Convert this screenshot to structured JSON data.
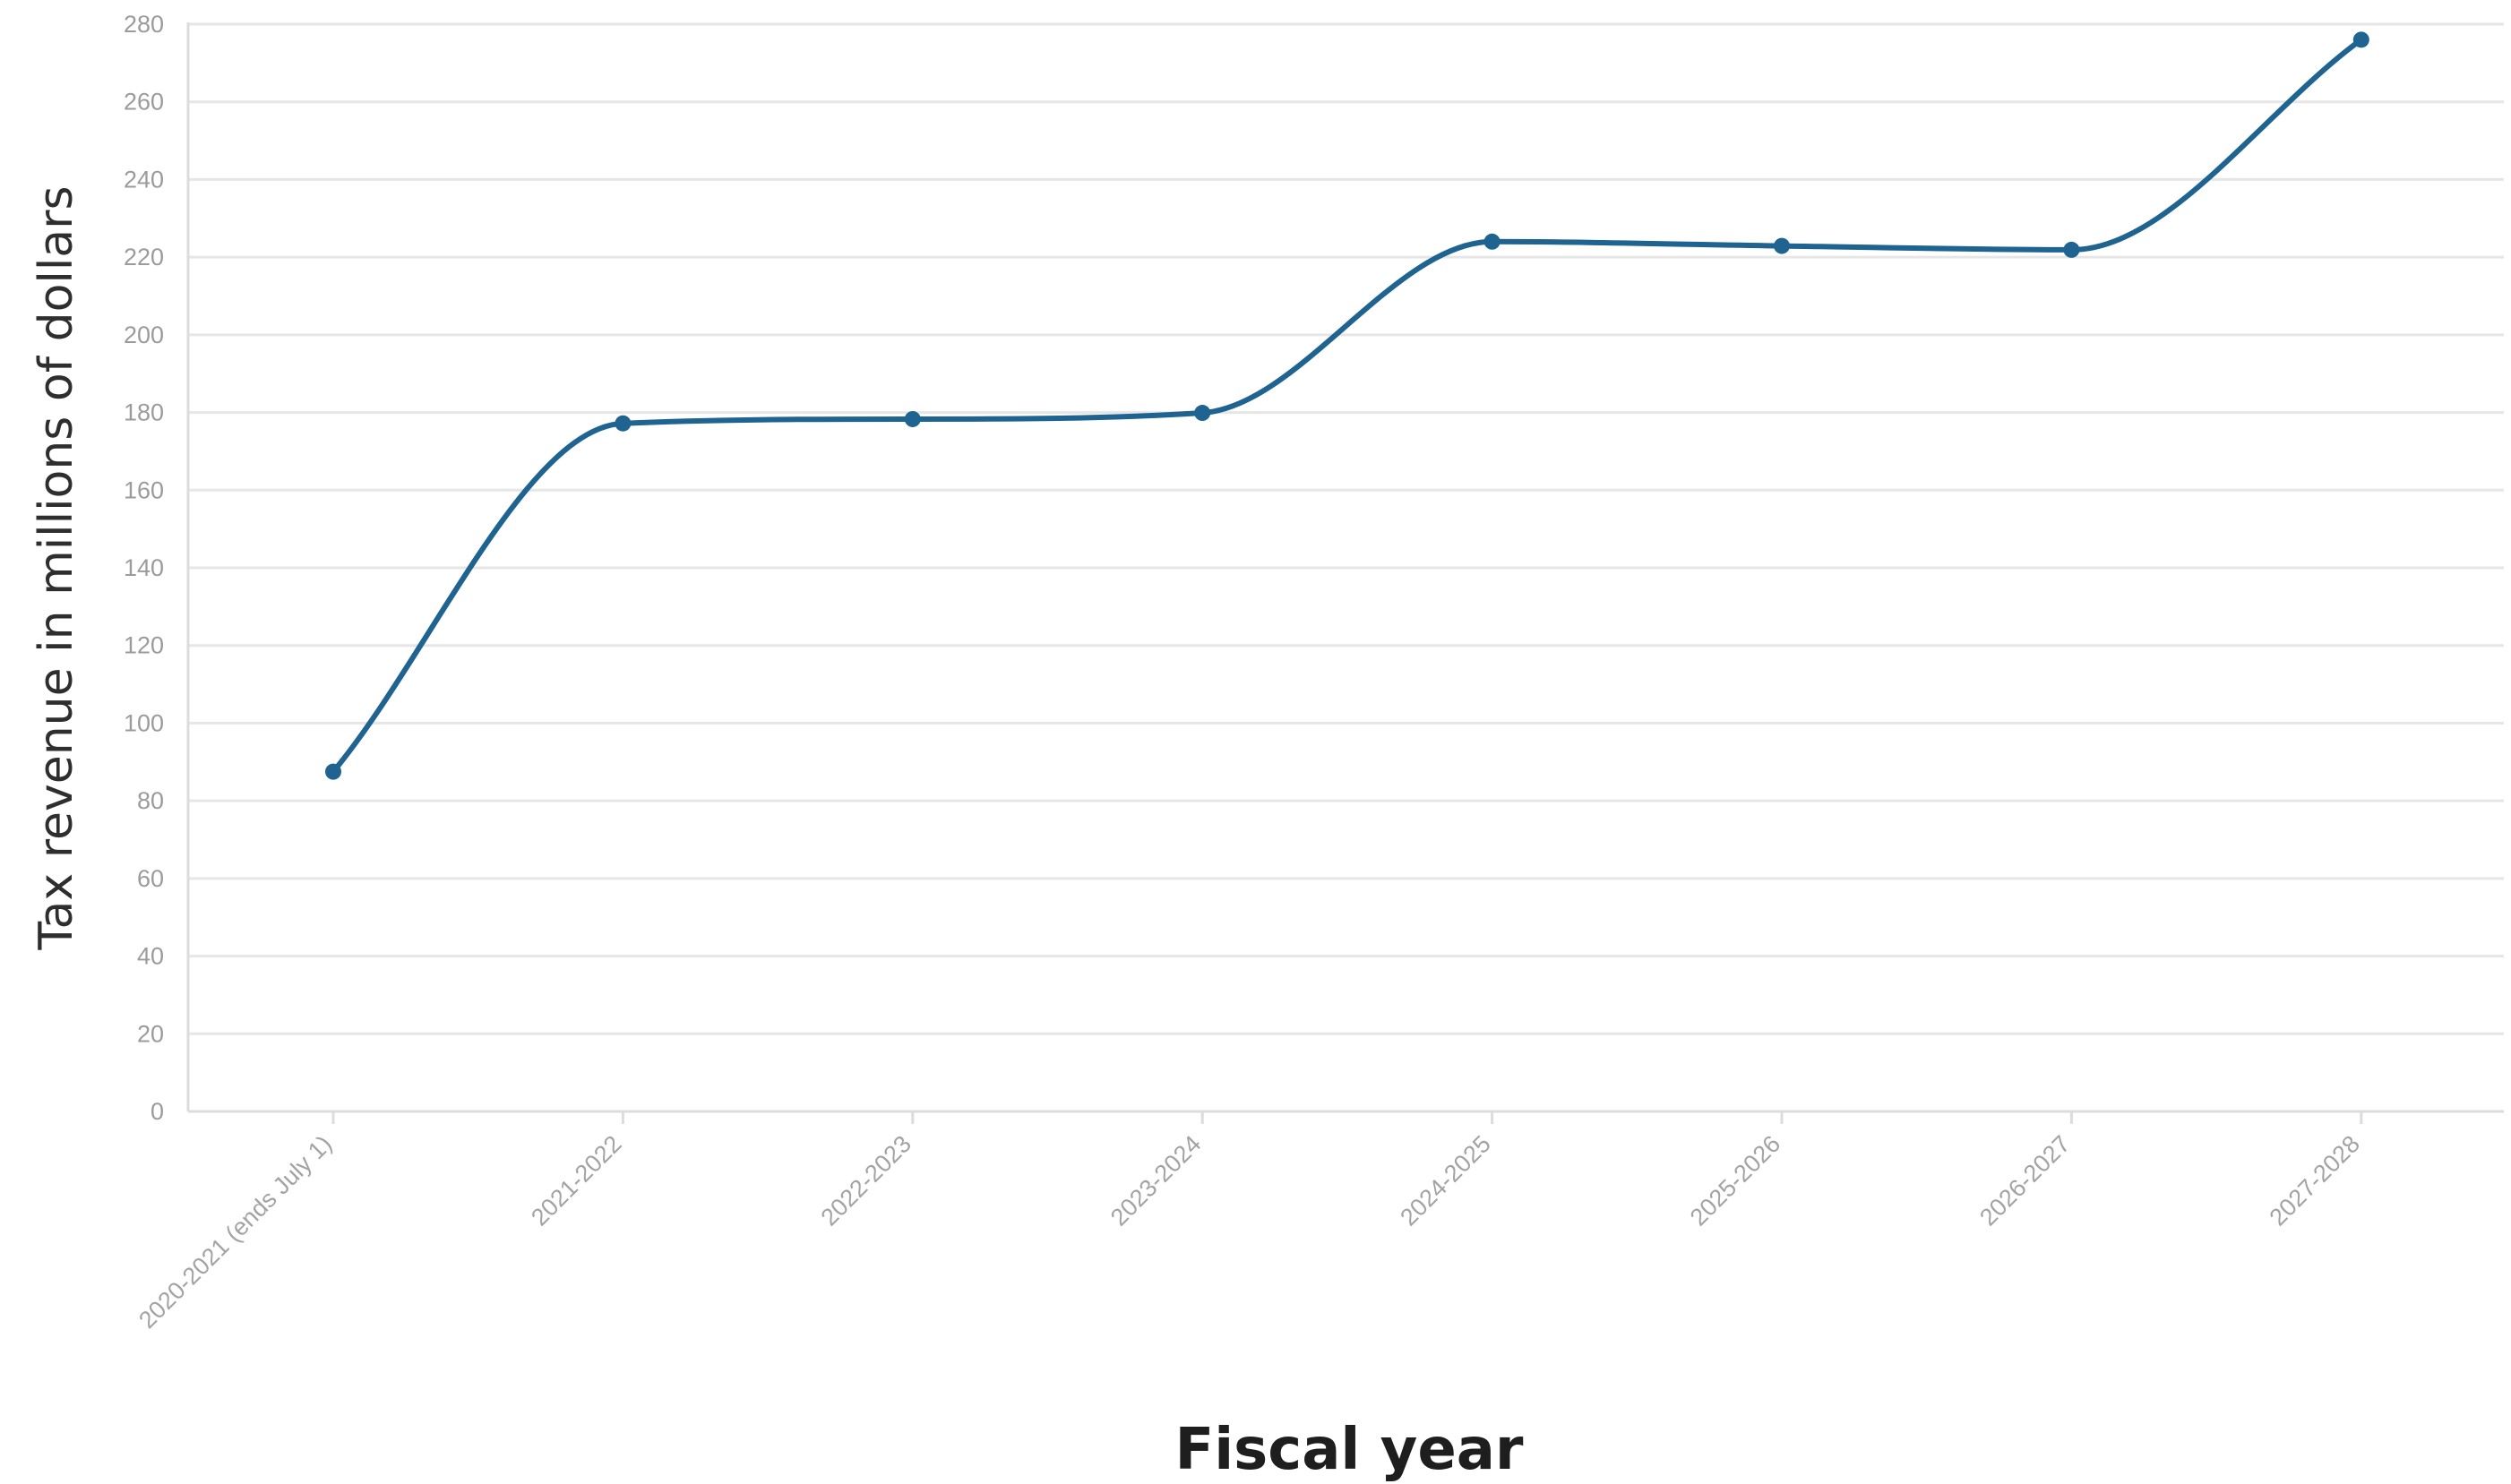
{
  "chart_data": {
    "type": "line",
    "xlabel": "Fiscal year",
    "ylabel": "Tax revenue in millions of dollars",
    "categories": [
      "2020-2021 (ends July 1)",
      "2021-2022",
      "2022-2023",
      "2023-2024",
      "2024-2025",
      "2025-2026",
      "2026-2027",
      "2027-2028"
    ],
    "series": [
      {
        "values": [
          87.5,
          177.2,
          178.3,
          179.9,
          224.0,
          222.9,
          221.9,
          276.0
        ],
        "color": "#1f6391"
      }
    ],
    "ylim": [
      0,
      280
    ],
    "yticks": [
      0,
      20,
      40,
      60,
      80,
      100,
      120,
      140,
      160,
      180,
      200,
      220,
      240,
      260,
      280
    ],
    "grid": true,
    "legend": "none",
    "curve": "smooth",
    "colors": {
      "grid": "#e6e6e6",
      "axis": "#dcdcdc",
      "tick_label": "#9b9b9b",
      "series": "#1f6391"
    }
  }
}
